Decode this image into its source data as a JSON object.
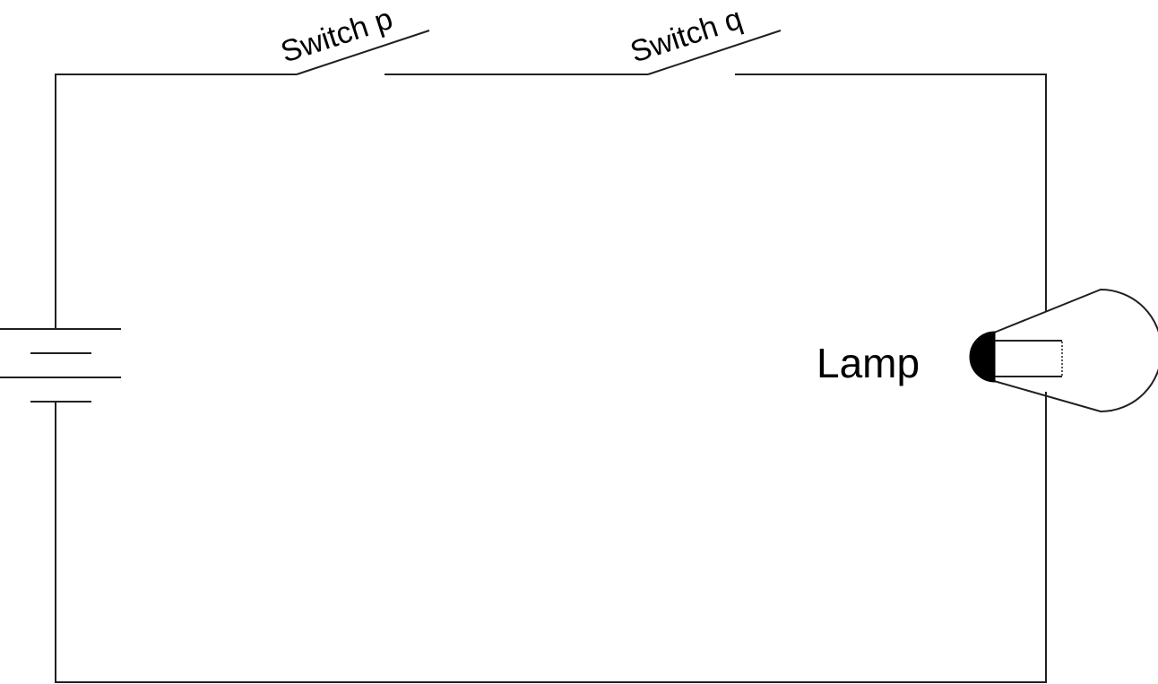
{
  "diagram": {
    "switch_p_label": "Switch p",
    "switch_q_label": "Switch q",
    "lamp_label": "Lamp",
    "colors": {
      "wire": "#231f20",
      "lamp_base": "#000000",
      "background": "#ffffff"
    }
  }
}
